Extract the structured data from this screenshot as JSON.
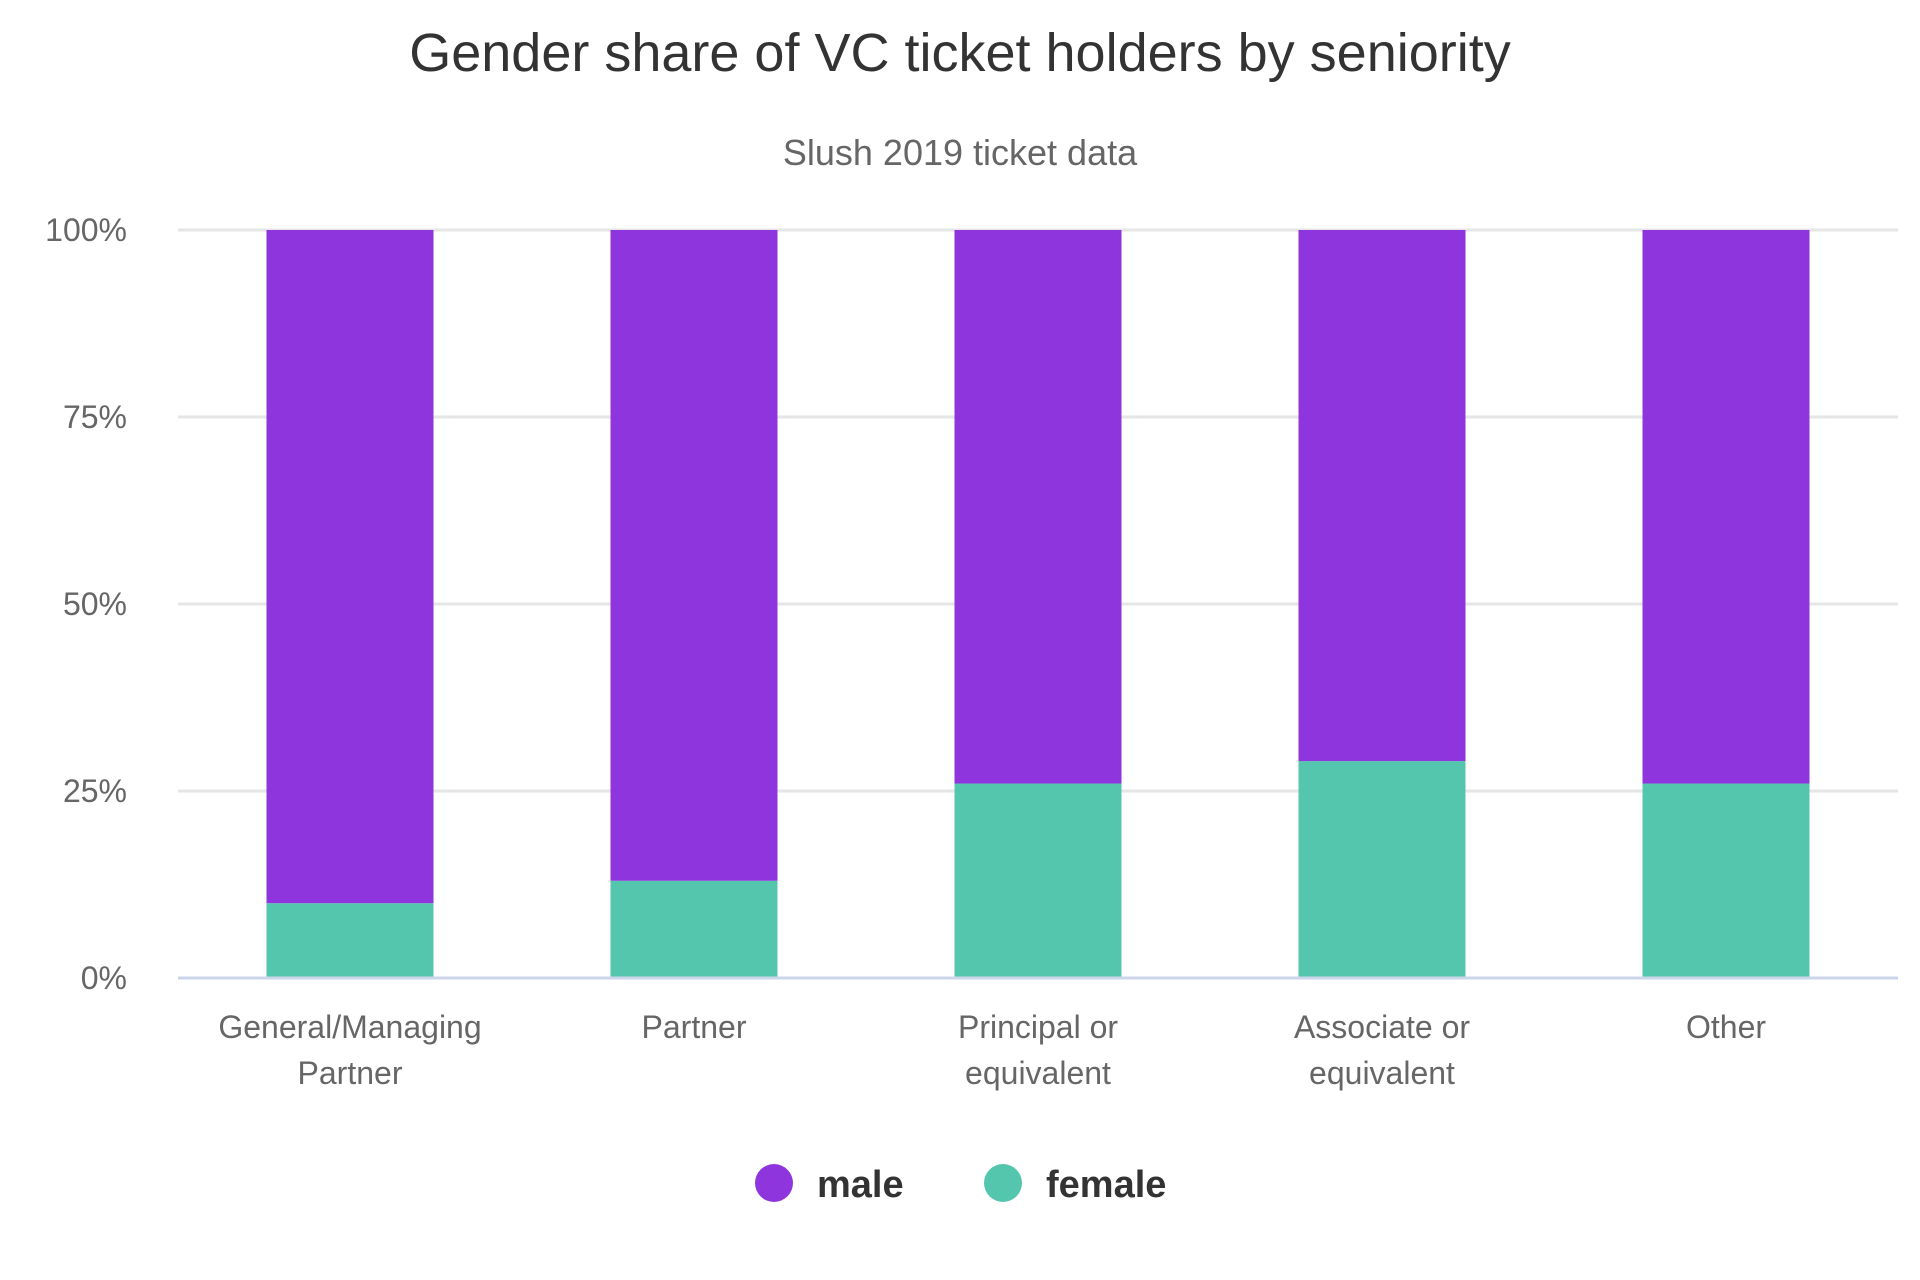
{
  "chart_data": {
    "type": "bar",
    "stacked": true,
    "title": "Gender share of VC ticket holders by seniority",
    "subtitle": "Slush 2019 ticket data",
    "categories": [
      [
        "General/Managing",
        "Partner"
      ],
      [
        "Partner"
      ],
      [
        "Principal or",
        "equivalent"
      ],
      [
        "Associate or",
        "equivalent"
      ],
      [
        "Other"
      ]
    ],
    "series": [
      {
        "name": "female",
        "color": "#55c6ae",
        "values": [
          10,
          13,
          26,
          29,
          26
        ]
      },
      {
        "name": "male",
        "color": "#8f35dd",
        "values": [
          90,
          87,
          74,
          71,
          74
        ]
      }
    ],
    "ylim": [
      0,
      100
    ],
    "yticks": [
      0,
      25,
      50,
      75,
      100
    ],
    "ytick_labels": [
      "0%",
      "25%",
      "50%",
      "75%",
      "100%"
    ],
    "legend": {
      "placement": "bottom",
      "order": [
        "male",
        "female"
      ]
    },
    "grid": true
  }
}
